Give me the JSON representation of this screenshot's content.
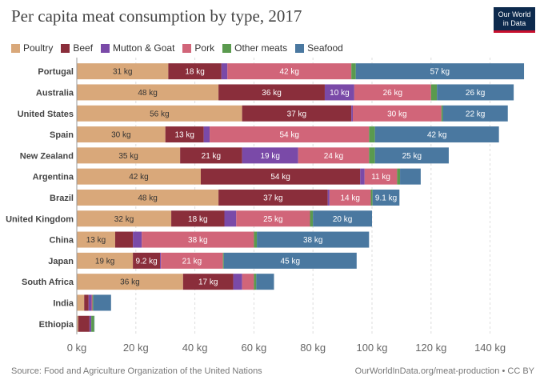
{
  "title": "Per capita meat consumption by type, 2017",
  "logo": {
    "line1": "Our World",
    "line2": "in Data"
  },
  "footer": {
    "source": "Source: Food and Agriculture Organization of the United Nations",
    "credit": "OurWorldInData.org/meat-production • CC BY"
  },
  "chart_data": {
    "type": "bar",
    "orientation": "horizontal",
    "stacked": true,
    "title": "Per capita meat consumption by type, 2017",
    "unit": "kg",
    "xlim": [
      0,
      150
    ],
    "xticks": [
      0,
      20,
      40,
      60,
      80,
      100,
      120,
      140
    ],
    "xtick_labels": [
      "0 kg",
      "20 kg",
      "40 kg",
      "60 kg",
      "80 kg",
      "100 kg",
      "120 kg",
      "140 kg"
    ],
    "grid": true,
    "legend_position": "top-left",
    "categories": [
      "Portugal",
      "Australia",
      "United States",
      "Spain",
      "New Zealand",
      "Argentina",
      "Brazil",
      "United Kingdom",
      "China",
      "Japan",
      "South Africa",
      "India",
      "Ethiopia"
    ],
    "series": [
      {
        "name": "Poultry",
        "color": "#d9a87a",
        "values": [
          31,
          48,
          56,
          30,
          35,
          42,
          48,
          32,
          13,
          19,
          36,
          2.5,
          0.5
        ]
      },
      {
        "name": "Beef",
        "color": "#8a2e3b",
        "values": [
          18,
          36,
          37,
          13,
          21,
          54,
          37,
          18,
          6,
          9.2,
          17,
          1.5,
          3.8
        ]
      },
      {
        "name": "Mutton & Goat",
        "color": "#7a4aa8",
        "values": [
          2,
          10,
          0.5,
          2,
          19,
          1.5,
          0.6,
          4,
          3,
          0.3,
          3,
          1,
          0.6
        ]
      },
      {
        "name": "Pork",
        "color": "#d16579",
        "values": [
          42,
          26,
          30,
          54,
          24,
          11,
          14,
          25,
          38,
          21,
          4,
          0.3,
          0
        ]
      },
      {
        "name": "Other meats",
        "color": "#5a9a4e",
        "values": [
          1.5,
          2,
          0.5,
          2,
          2,
          1,
          0.6,
          1,
          1,
          0.3,
          0.8,
          0.3,
          1
        ]
      },
      {
        "name": "Seafood",
        "color": "#4a78a0",
        "values": [
          57,
          26,
          22,
          42,
          25,
          7,
          9.1,
          20,
          38,
          45,
          6,
          6,
          0.1
        ]
      }
    ],
    "data_labels": [
      [
        "31 kg",
        "18 kg",
        "",
        "42 kg",
        "",
        "57 kg"
      ],
      [
        "48 kg",
        "36 kg",
        "10 kg",
        "26 kg",
        "",
        "26 kg"
      ],
      [
        "56 kg",
        "37 kg",
        "",
        "30 kg",
        "",
        "22 kg"
      ],
      [
        "30 kg",
        "13 kg",
        "",
        "54 kg",
        "",
        "42 kg"
      ],
      [
        "35 kg",
        "21 kg",
        "19 kg",
        "24 kg",
        "",
        "25 kg"
      ],
      [
        "42 kg",
        "54 kg",
        "",
        "11 kg",
        "",
        ""
      ],
      [
        "48 kg",
        "37 kg",
        "",
        "14 kg",
        "",
        "9.1 kg"
      ],
      [
        "32 kg",
        "18 kg",
        "",
        "25 kg",
        "",
        "20 kg"
      ],
      [
        "13 kg",
        "",
        "",
        "38 kg",
        "",
        "38 kg"
      ],
      [
        "19 kg",
        "9.2 kg",
        "",
        "21 kg",
        "",
        "45 kg"
      ],
      [
        "36 kg",
        "17 kg",
        "",
        "",
        "",
        ""
      ],
      [
        "",
        "",
        "",
        "",
        "",
        ""
      ],
      [
        "",
        "",
        "",
        "",
        "",
        ""
      ]
    ]
  }
}
